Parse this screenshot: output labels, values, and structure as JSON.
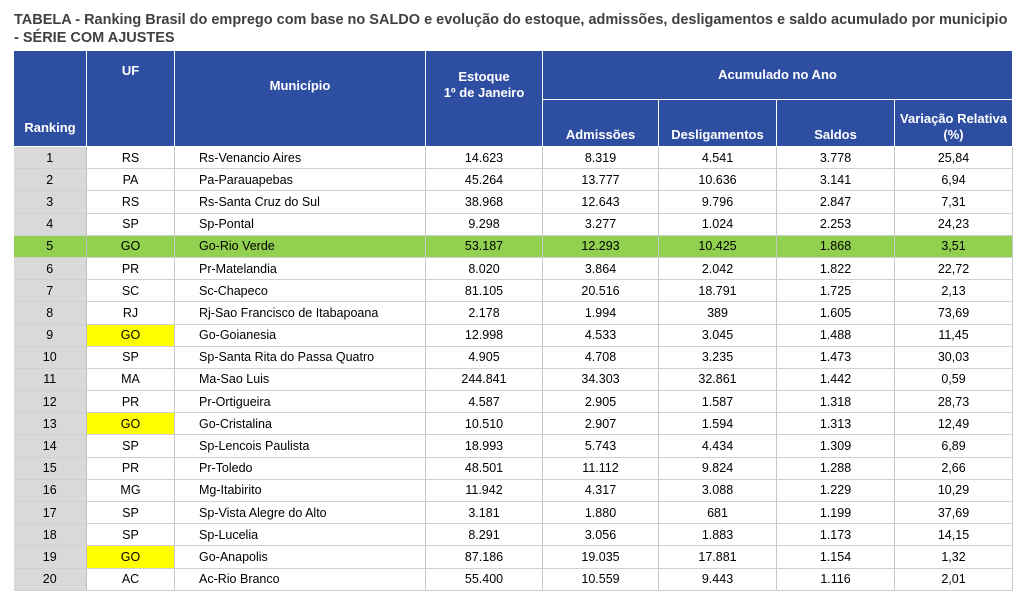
{
  "title": "TABELA - Ranking Brasil do emprego  com base no SALDO e evolução do estoque, admissões, desligamentos e saldo acumulado por municipio - SÉRIE COM AJUSTES",
  "headers": {
    "ranking": "Ranking",
    "uf": "UF",
    "municipio": "Município",
    "estoque_line1": "Estoque",
    "estoque_line2": "1º de Janeiro",
    "acumulado": "Acumulado no Ano",
    "admissoes": "Admissões",
    "desligamentos": "Desligamentos",
    "saldos": "Saldos",
    "variacao_line1": "Variação Relativa",
    "variacao_line2": "(%)"
  },
  "colors": {
    "header_bg": "#2e4ea1",
    "highlight_row": "#92d050",
    "highlight_uf": "#ffff00"
  },
  "rows": [
    {
      "rank": "1",
      "uf": "RS",
      "municipio": "Rs-Venancio Aires",
      "estoque": "14.623",
      "admissoes": "8.319",
      "desligamentos": "4.541",
      "saldos": "3.778",
      "variacao": "25,84"
    },
    {
      "rank": "2",
      "uf": "PA",
      "municipio": "Pa-Parauapebas",
      "estoque": "45.264",
      "admissoes": "13.777",
      "desligamentos": "10.636",
      "saldos": "3.141",
      "variacao": "6,94"
    },
    {
      "rank": "3",
      "uf": "RS",
      "municipio": "Rs-Santa Cruz do Sul",
      "estoque": "38.968",
      "admissoes": "12.643",
      "desligamentos": "9.796",
      "saldos": "2.847",
      "variacao": "7,31"
    },
    {
      "rank": "4",
      "uf": "SP",
      "municipio": "Sp-Pontal",
      "estoque": "9.298",
      "admissoes": "3.277",
      "desligamentos": "1.024",
      "saldos": "2.253",
      "variacao": "24,23"
    },
    {
      "rank": "5",
      "uf": "GO",
      "municipio": "Go-Rio Verde",
      "estoque": "53.187",
      "admissoes": "12.293",
      "desligamentos": "10.425",
      "saldos": "1.868",
      "variacao": "3,51"
    },
    {
      "rank": "6",
      "uf": "PR",
      "municipio": "Pr-Matelandia",
      "estoque": "8.020",
      "admissoes": "3.864",
      "desligamentos": "2.042",
      "saldos": "1.822",
      "variacao": "22,72"
    },
    {
      "rank": "7",
      "uf": "SC",
      "municipio": "Sc-Chapeco",
      "estoque": "81.105",
      "admissoes": "20.516",
      "desligamentos": "18.791",
      "saldos": "1.725",
      "variacao": "2,13"
    },
    {
      "rank": "8",
      "uf": "RJ",
      "municipio": "Rj-Sao Francisco de Itabapoana",
      "estoque": "2.178",
      "admissoes": "1.994",
      "desligamentos": "389",
      "saldos": "1.605",
      "variacao": "73,69"
    },
    {
      "rank": "9",
      "uf": "GO",
      "municipio": "Go-Goianesia",
      "estoque": "12.998",
      "admissoes": "4.533",
      "desligamentos": "3.045",
      "saldos": "1.488",
      "variacao": "11,45"
    },
    {
      "rank": "10",
      "uf": "SP",
      "municipio": "Sp-Santa Rita do Passa Quatro",
      "estoque": "4.905",
      "admissoes": "4.708",
      "desligamentos": "3.235",
      "saldos": "1.473",
      "variacao": "30,03"
    },
    {
      "rank": "11",
      "uf": "MA",
      "municipio": "Ma-Sao Luis",
      "estoque": "244.841",
      "admissoes": "34.303",
      "desligamentos": "32.861",
      "saldos": "1.442",
      "variacao": "0,59"
    },
    {
      "rank": "12",
      "uf": "PR",
      "municipio": "Pr-Ortigueira",
      "estoque": "4.587",
      "admissoes": "2.905",
      "desligamentos": "1.587",
      "saldos": "1.318",
      "variacao": "28,73"
    },
    {
      "rank": "13",
      "uf": "GO",
      "municipio": "Go-Cristalina",
      "estoque": "10.510",
      "admissoes": "2.907",
      "desligamentos": "1.594",
      "saldos": "1.313",
      "variacao": "12,49"
    },
    {
      "rank": "14",
      "uf": "SP",
      "municipio": "Sp-Lencois Paulista",
      "estoque": "18.993",
      "admissoes": "5.743",
      "desligamentos": "4.434",
      "saldos": "1.309",
      "variacao": "6,89"
    },
    {
      "rank": "15",
      "uf": "PR",
      "municipio": "Pr-Toledo",
      "estoque": "48.501",
      "admissoes": "11.112",
      "desligamentos": "9.824",
      "saldos": "1.288",
      "variacao": "2,66"
    },
    {
      "rank": "16",
      "uf": "MG",
      "municipio": "Mg-Itabirito",
      "estoque": "11.942",
      "admissoes": "4.317",
      "desligamentos": "3.088",
      "saldos": "1.229",
      "variacao": "10,29"
    },
    {
      "rank": "17",
      "uf": "SP",
      "municipio": "Sp-Vista Alegre do Alto",
      "estoque": "3.181",
      "admissoes": "1.880",
      "desligamentos": "681",
      "saldos": "1.199",
      "variacao": "37,69"
    },
    {
      "rank": "18",
      "uf": "SP",
      "municipio": "Sp-Lucelia",
      "estoque": "8.291",
      "admissoes": "3.056",
      "desligamentos": "1.883",
      "saldos": "1.173",
      "variacao": "14,15"
    },
    {
      "rank": "19",
      "uf": "GO",
      "municipio": "Go-Anapolis",
      "estoque": "87.186",
      "admissoes": "19.035",
      "desligamentos": "17.881",
      "saldos": "1.154",
      "variacao": "1,32"
    },
    {
      "rank": "20",
      "uf": "AC",
      "municipio": "Ac-Rio Branco",
      "estoque": "55.400",
      "admissoes": "10.559",
      "desligamentos": "9.443",
      "saldos": "1.116",
      "variacao": "2,01"
    }
  ]
}
